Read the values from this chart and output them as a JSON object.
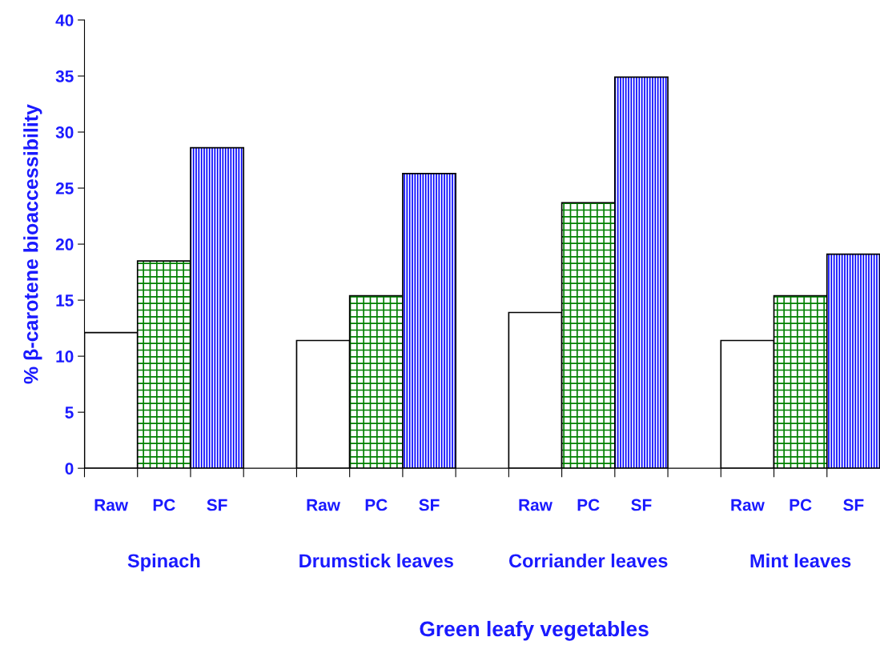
{
  "chart_data": {
    "type": "bar",
    "xlabel": "Green leafy vegetables",
    "ylabel": "% β-carotene bioaccessibility",
    "categories": [
      "Spinach",
      "Drumstick leaves",
      "Corriander leaves",
      "Mint leaves"
    ],
    "series": [
      {
        "name": "Raw",
        "color": "#ffffff",
        "values": [
          12.1,
          11.4,
          13.9,
          11.4
        ]
      },
      {
        "name": "PC",
        "color": "#008000",
        "values": [
          18.5,
          15.4,
          23.7,
          15.4
        ]
      },
      {
        "name": "SF",
        "color": "#0000ff",
        "values": [
          28.6,
          26.3,
          34.9,
          19.1
        ]
      }
    ],
    "ylim": [
      0,
      40
    ],
    "yticks": [
      0,
      5,
      10,
      15,
      20,
      25,
      30,
      35,
      40
    ],
    "grid": false,
    "legend": false
  }
}
